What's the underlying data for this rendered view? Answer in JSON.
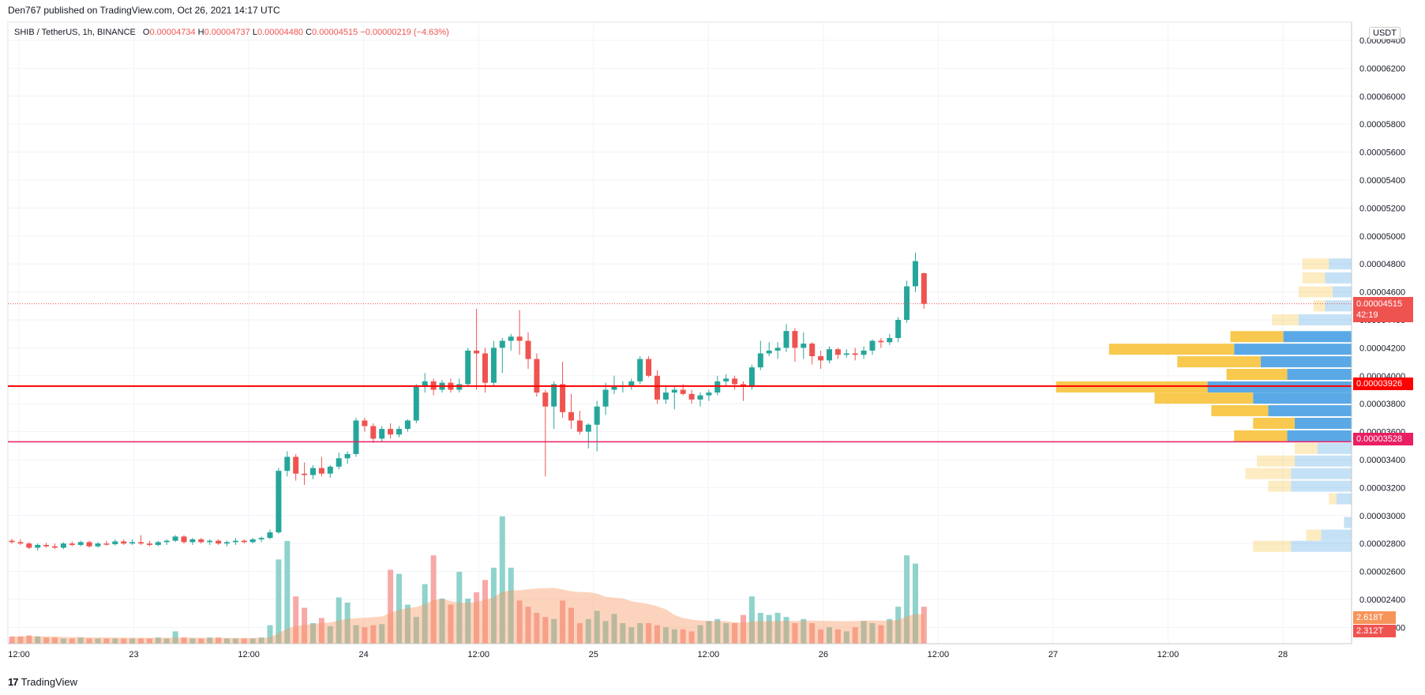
{
  "publisher": "Den767 published on TradingView.com, Oct 26, 2021 14:17 UTC",
  "legend": {
    "symbol": "SHIB / TetherUS, 1h, BINANCE",
    "o_label": "O",
    "o": "0.00004734",
    "h_label": "H",
    "h": "0.00004737",
    "l_label": "L",
    "l": "0.00004480",
    "c_label": "C",
    "c": "0.00004515",
    "change": "−0.00000219 (−4.63%)"
  },
  "axis_unit": "USDT",
  "footer": "TradingView",
  "colors": {
    "up": "#26a69a",
    "down": "#ef5350",
    "vol_up": "#8fd3cc",
    "vol_down": "#f7a9a8",
    "level_red": "#ff0000",
    "level_pink": "#e91e63",
    "profile_up": "#f8c94e",
    "profile_down": "#5aa9e6"
  },
  "labels": {
    "current_price": "0.00004515",
    "countdown": "42:19",
    "level_1": "0.00003926",
    "level_2": "0.00003528",
    "vol_1": "2.618T",
    "vol_2": "2.312T"
  },
  "chart_data": {
    "type": "candlestick",
    "symbol": "SHIB / TetherUS",
    "interval": "1h",
    "exchange": "BINANCE",
    "ylim": [
      2.15e-05,
      6.43e-05
    ],
    "y_ticks": [
      "0.00006400",
      "0.00006200",
      "0.00006000",
      "0.00005800",
      "0.00005600",
      "0.00005400",
      "0.00005200",
      "0.00005000",
      "0.00004800",
      "0.00004600",
      "0.00004400",
      "0.00004200",
      "0.00004000",
      "0.00003800",
      "0.00003600",
      "0.00003400",
      "0.00003200",
      "0.00003000",
      "0.00002800",
      "0.00002600",
      "0.00002400",
      "0.00002200"
    ],
    "x_ticks": [
      "12:00",
      "23",
      "12:00",
      "24",
      "12:00",
      "25",
      "12:00",
      "26",
      "12:00",
      "27",
      "12:00",
      "28"
    ],
    "horizontal_levels": [
      3.926e-05,
      3.528e-05
    ],
    "current_price": 4.515e-05,
    "candles": [
      {
        "o": 2.82e-05,
        "h": 2.835e-05,
        "l": 2.8e-05,
        "c": 2.81e-05
      },
      {
        "o": 2.81e-05,
        "h": 2.83e-05,
        "l": 2.79e-05,
        "c": 2.8e-05
      },
      {
        "o": 2.8e-05,
        "h": 2.81e-05,
        "l": 2.76e-05,
        "c": 2.77e-05
      },
      {
        "o": 2.77e-05,
        "h": 2.8e-05,
        "l": 2.75e-05,
        "c": 2.79e-05
      },
      {
        "o": 2.79e-05,
        "h": 2.805e-05,
        "l": 2.77e-05,
        "c": 2.78e-05
      },
      {
        "o": 2.78e-05,
        "h": 2.8e-05,
        "l": 2.76e-05,
        "c": 2.77e-05
      },
      {
        "o": 2.77e-05,
        "h": 2.81e-05,
        "l": 2.76e-05,
        "c": 2.8e-05
      },
      {
        "o": 2.8e-05,
        "h": 2.815e-05,
        "l": 2.78e-05,
        "c": 2.79e-05
      },
      {
        "o": 2.79e-05,
        "h": 2.82e-05,
        "l": 2.78e-05,
        "c": 2.81e-05
      },
      {
        "o": 2.81e-05,
        "h": 2.82e-05,
        "l": 2.77e-05,
        "c": 2.78e-05
      },
      {
        "o": 2.78e-05,
        "h": 2.81e-05,
        "l": 2.77e-05,
        "c": 2.8e-05
      },
      {
        "o": 2.8e-05,
        "h": 2.82e-05,
        "l": 2.785e-05,
        "c": 2.795e-05
      },
      {
        "o": 2.795e-05,
        "h": 2.83e-05,
        "l": 2.785e-05,
        "c": 2.815e-05
      },
      {
        "o": 2.815e-05,
        "h": 2.83e-05,
        "l": 2.79e-05,
        "c": 2.8e-05
      },
      {
        "o": 2.8e-05,
        "h": 2.83e-05,
        "l": 2.79e-05,
        "c": 2.81e-05
      },
      {
        "o": 2.81e-05,
        "h": 2.86e-05,
        "l": 2.79e-05,
        "c": 2.8e-05
      },
      {
        "o": 2.8e-05,
        "h": 2.82e-05,
        "l": 2.78e-05,
        "c": 2.79e-05
      },
      {
        "o": 2.79e-05,
        "h": 2.82e-05,
        "l": 2.78e-05,
        "c": 2.81e-05
      },
      {
        "o": 2.81e-05,
        "h": 2.83e-05,
        "l": 2.79e-05,
        "c": 2.82e-05
      },
      {
        "o": 2.82e-05,
        "h": 2.86e-05,
        "l": 2.81e-05,
        "c": 2.85e-05
      },
      {
        "o": 2.85e-05,
        "h": 2.86e-05,
        "l": 2.8e-05,
        "c": 2.81e-05
      },
      {
        "o": 2.81e-05,
        "h": 2.84e-05,
        "l": 2.79e-05,
        "c": 2.83e-05
      },
      {
        "o": 2.83e-05,
        "h": 2.84e-05,
        "l": 2.8e-05,
        "c": 2.81e-05
      },
      {
        "o": 2.81e-05,
        "h": 2.83e-05,
        "l": 2.79e-05,
        "c": 2.82e-05
      },
      {
        "o": 2.82e-05,
        "h": 2.83e-05,
        "l": 2.79e-05,
        "c": 2.8e-05
      },
      {
        "o": 2.8e-05,
        "h": 2.82e-05,
        "l": 2.78e-05,
        "c": 2.81e-05
      },
      {
        "o": 2.81e-05,
        "h": 2.84e-05,
        "l": 2.79e-05,
        "c": 2.82e-05
      },
      {
        "o": 2.82e-05,
        "h": 2.83e-05,
        "l": 2.8e-05,
        "c": 2.81e-05
      },
      {
        "o": 2.81e-05,
        "h": 2.84e-05,
        "l": 2.8e-05,
        "c": 2.83e-05
      },
      {
        "o": 2.83e-05,
        "h": 2.85e-05,
        "l": 2.81e-05,
        "c": 2.84e-05
      },
      {
        "o": 2.84e-05,
        "h": 2.9e-05,
        "l": 2.83e-05,
        "c": 2.88e-05
      },
      {
        "o": 2.88e-05,
        "h": 3.34e-05,
        "l": 2.87e-05,
        "c": 3.32e-05
      },
      {
        "o": 3.32e-05,
        "h": 3.46e-05,
        "l": 3.28e-05,
        "c": 3.42e-05
      },
      {
        "o": 3.42e-05,
        "h": 3.44e-05,
        "l": 3.25e-05,
        "c": 3.3e-05
      },
      {
        "o": 3.3e-05,
        "h": 3.38e-05,
        "l": 3.22e-05,
        "c": 3.29e-05
      },
      {
        "o": 3.29e-05,
        "h": 3.36e-05,
        "l": 3.26e-05,
        "c": 3.34e-05
      },
      {
        "o": 3.34e-05,
        "h": 3.42e-05,
        "l": 3.28e-05,
        "c": 3.3e-05
      },
      {
        "o": 3.3e-05,
        "h": 3.36e-05,
        "l": 3.27e-05,
        "c": 3.35e-05
      },
      {
        "o": 3.35e-05,
        "h": 3.45e-05,
        "l": 3.33e-05,
        "c": 3.41e-05
      },
      {
        "o": 3.41e-05,
        "h": 3.46e-05,
        "l": 3.37e-05,
        "c": 3.44e-05
      },
      {
        "o": 3.44e-05,
        "h": 3.7e-05,
        "l": 3.42e-05,
        "c": 3.68e-05
      },
      {
        "o": 3.68e-05,
        "h": 3.7e-05,
        "l": 3.6e-05,
        "c": 3.64e-05
      },
      {
        "o": 3.64e-05,
        "h": 3.66e-05,
        "l": 3.52e-05,
        "c": 3.55e-05
      },
      {
        "o": 3.55e-05,
        "h": 3.64e-05,
        "l": 3.53e-05,
        "c": 3.62e-05
      },
      {
        "o": 3.62e-05,
        "h": 3.66e-05,
        "l": 3.55e-05,
        "c": 3.58e-05
      },
      {
        "o": 3.58e-05,
        "h": 3.64e-05,
        "l": 3.56e-05,
        "c": 3.62e-05
      },
      {
        "o": 3.62e-05,
        "h": 3.69e-05,
        "l": 3.6e-05,
        "c": 3.68e-05
      },
      {
        "o": 3.68e-05,
        "h": 3.94e-05,
        "l": 3.66e-05,
        "c": 3.92e-05
      },
      {
        "o": 3.92e-05,
        "h": 4.02e-05,
        "l": 3.88e-05,
        "c": 3.96e-05
      },
      {
        "o": 3.96e-05,
        "h": 3.98e-05,
        "l": 3.86e-05,
        "c": 3.9e-05
      },
      {
        "o": 3.9e-05,
        "h": 3.97e-05,
        "l": 3.88e-05,
        "c": 3.95e-05
      },
      {
        "o": 3.95e-05,
        "h": 3.98e-05,
        "l": 3.88e-05,
        "c": 3.9e-05
      },
      {
        "o": 3.9e-05,
        "h": 3.98e-05,
        "l": 3.88e-05,
        "c": 3.94e-05
      },
      {
        "o": 3.94e-05,
        "h": 4.2e-05,
        "l": 3.92e-05,
        "c": 4.18e-05
      },
      {
        "o": 4.18e-05,
        "h": 4.48e-05,
        "l": 3.9e-05,
        "c": 4.16e-05
      },
      {
        "o": 4.16e-05,
        "h": 4.2e-05,
        "l": 3.88e-05,
        "c": 3.95e-05
      },
      {
        "o": 3.95e-05,
        "h": 4.25e-05,
        "l": 3.92e-05,
        "c": 4.2e-05
      },
      {
        "o": 4.2e-05,
        "h": 4.27e-05,
        "l": 4.02e-05,
        "c": 4.25e-05
      },
      {
        "o": 4.25e-05,
        "h": 4.3e-05,
        "l": 4.18e-05,
        "c": 4.28e-05
      },
      {
        "o": 4.28e-05,
        "h": 4.47e-05,
        "l": 4.15e-05,
        "c": 4.25e-05
      },
      {
        "o": 4.25e-05,
        "h": 4.31e-05,
        "l": 4.05e-05,
        "c": 4.12e-05
      },
      {
        "o": 4.12e-05,
        "h": 4.16e-05,
        "l": 3.85e-05,
        "c": 3.88e-05
      },
      {
        "o": 3.88e-05,
        "h": 3.9e-05,
        "l": 3.28e-05,
        "c": 3.78e-05
      },
      {
        "o": 3.78e-05,
        "h": 3.96e-05,
        "l": 3.62e-05,
        "c": 3.94e-05
      },
      {
        "o": 3.94e-05,
        "h": 4.1e-05,
        "l": 3.7e-05,
        "c": 3.74e-05
      },
      {
        "o": 3.74e-05,
        "h": 3.87e-05,
        "l": 3.62e-05,
        "c": 3.68e-05
      },
      {
        "o": 3.68e-05,
        "h": 3.75e-05,
        "l": 3.58e-05,
        "c": 3.6e-05
      },
      {
        "o": 3.6e-05,
        "h": 3.66e-05,
        "l": 3.48e-05,
        "c": 3.65e-05
      },
      {
        "o": 3.65e-05,
        "h": 3.82e-05,
        "l": 3.46e-05,
        "c": 3.78e-05
      },
      {
        "o": 3.78e-05,
        "h": 3.95e-05,
        "l": 3.72e-05,
        "c": 3.9e-05
      },
      {
        "o": 3.9e-05,
        "h": 4e-05,
        "l": 3.87e-05,
        "c": 3.92e-05
      },
      {
        "o": 3.92e-05,
        "h": 3.96e-05,
        "l": 3.88e-05,
        "c": 3.93e-05
      },
      {
        "o": 3.93e-05,
        "h": 3.98e-05,
        "l": 3.9e-05,
        "c": 3.96e-05
      },
      {
        "o": 3.96e-05,
        "h": 4.14e-05,
        "l": 3.94e-05,
        "c": 4.12e-05
      },
      {
        "o": 4.12e-05,
        "h": 4.14e-05,
        "l": 3.99e-05,
        "c": 4e-05
      },
      {
        "o": 4e-05,
        "h": 4.04e-05,
        "l": 3.8e-05,
        "c": 3.83e-05
      },
      {
        "o": 3.83e-05,
        "h": 3.92e-05,
        "l": 3.8e-05,
        "c": 3.88e-05
      },
      {
        "o": 3.88e-05,
        "h": 3.93e-05,
        "l": 3.76e-05,
        "c": 3.9e-05
      },
      {
        "o": 3.9e-05,
        "h": 3.94e-05,
        "l": 3.86e-05,
        "c": 3.87e-05
      },
      {
        "o": 3.87e-05,
        "h": 3.9e-05,
        "l": 3.8e-05,
        "c": 3.83e-05
      },
      {
        "o": 3.83e-05,
        "h": 3.88e-05,
        "l": 3.78e-05,
        "c": 3.86e-05
      },
      {
        "o": 3.86e-05,
        "h": 3.9e-05,
        "l": 3.82e-05,
        "c": 3.88e-05
      },
      {
        "o": 3.88e-05,
        "h": 4e-05,
        "l": 3.86e-05,
        "c": 3.96e-05
      },
      {
        "o": 3.96e-05,
        "h": 4.01e-05,
        "l": 3.92e-05,
        "c": 3.98e-05
      },
      {
        "o": 3.98e-05,
        "h": 4e-05,
        "l": 3.9e-05,
        "c": 3.94e-05
      },
      {
        "o": 3.94e-05,
        "h": 3.96e-05,
        "l": 3.82e-05,
        "c": 3.92e-05
      },
      {
        "o": 3.92e-05,
        "h": 4.08e-05,
        "l": 3.9e-05,
        "c": 4.06e-05
      },
      {
        "o": 4.06e-05,
        "h": 4.25e-05,
        "l": 4.04e-05,
        "c": 4.16e-05
      },
      {
        "o": 4.16e-05,
        "h": 4.24e-05,
        "l": 4.14e-05,
        "c": 4.18e-05
      },
      {
        "o": 4.18e-05,
        "h": 4.24e-05,
        "l": 4.12e-05,
        "c": 4.2e-05
      },
      {
        "o": 4.2e-05,
        "h": 4.37e-05,
        "l": 4.17e-05,
        "c": 4.32e-05
      },
      {
        "o": 4.32e-05,
        "h": 4.34e-05,
        "l": 4.1e-05,
        "c": 4.2e-05
      },
      {
        "o": 4.2e-05,
        "h": 4.31e-05,
        "l": 4.12e-05,
        "c": 4.23e-05
      },
      {
        "o": 4.23e-05,
        "h": 4.24e-05,
        "l": 4.08e-05,
        "c": 4.14e-05
      },
      {
        "o": 4.14e-05,
        "h": 4.18e-05,
        "l": 4.05e-05,
        "c": 4.11e-05
      },
      {
        "o": 4.11e-05,
        "h": 4.21e-05,
        "l": 4.09e-05,
        "c": 4.19e-05
      },
      {
        "o": 4.19e-05,
        "h": 4.2e-05,
        "l": 4.12e-05,
        "c": 4.15e-05
      },
      {
        "o": 4.15e-05,
        "h": 4.19e-05,
        "l": 4.13e-05,
        "c": 4.16e-05
      },
      {
        "o": 4.16e-05,
        "h": 4.2e-05,
        "l": 4.11e-05,
        "c": 4.15e-05
      },
      {
        "o": 4.15e-05,
        "h": 4.21e-05,
        "l": 4.12e-05,
        "c": 4.18e-05
      },
      {
        "o": 4.18e-05,
        "h": 4.26e-05,
        "l": 4.15e-05,
        "c": 4.25e-05
      },
      {
        "o": 4.25e-05,
        "h": 4.27e-05,
        "l": 4.2e-05,
        "c": 4.24e-05
      },
      {
        "o": 4.24e-05,
        "h": 4.3e-05,
        "l": 4.22e-05,
        "c": 4.27e-05
      },
      {
        "o": 4.27e-05,
        "h": 4.42e-05,
        "l": 4.24e-05,
        "c": 4.4e-05
      },
      {
        "o": 4.4e-05,
        "h": 4.68e-05,
        "l": 4.38e-05,
        "c": 4.64e-05
      },
      {
        "o": 4.64e-05,
        "h": 4.88e-05,
        "l": 4.6e-05,
        "c": 4.82e-05
      },
      {
        "o": 4.734e-05,
        "h": 4.737e-05,
        "l": 4.48e-05,
        "c": 4.515e-05
      }
    ],
    "volume_relative": [
      0.07,
      0.07,
      0.08,
      0.07,
      0.06,
      0.06,
      0.05,
      0.05,
      0.06,
      0.05,
      0.05,
      0.05,
      0.05,
      0.05,
      0.05,
      0.05,
      0.05,
      0.06,
      0.05,
      0.12,
      0.06,
      0.05,
      0.05,
      0.06,
      0.06,
      0.05,
      0.05,
      0.05,
      0.05,
      0.06,
      0.18,
      0.82,
      1.0,
      0.46,
      0.35,
      0.2,
      0.25,
      0.17,
      0.45,
      0.4,
      0.18,
      0.16,
      0.18,
      0.19,
      0.72,
      0.68,
      0.38,
      0.26,
      0.58,
      0.86,
      0.44,
      0.38,
      0.7,
      0.44,
      0.5,
      0.62,
      0.74,
      1.24,
      0.74,
      0.42,
      0.36,
      0.3,
      0.26,
      0.24,
      0.42,
      0.35,
      0.2,
      0.24,
      0.32,
      0.22,
      0.29,
      0.2,
      0.16,
      0.2,
      0.2,
      0.18,
      0.16,
      0.14,
      0.14,
      0.12,
      0.18,
      0.22,
      0.24,
      0.2,
      0.2,
      0.28,
      0.46,
      0.3,
      0.28,
      0.3,
      0.26,
      0.2,
      0.24,
      0.2,
      0.14,
      0.16,
      0.14,
      0.12,
      0.16,
      0.22,
      0.2,
      0.18,
      0.24,
      0.36,
      0.86,
      0.78,
      0.36
    ],
    "volume_profile": [
      {
        "price": 4.8e-05,
        "up": 0.35,
        "down": 0.3,
        "faded": true
      },
      {
        "price": 4.7e-05,
        "up": 0.3,
        "down": 0.35,
        "faded": true
      },
      {
        "price": 4.6e-05,
        "up": 0.45,
        "down": 0.25,
        "faded": true
      },
      {
        "price": 4.5e-05,
        "up": 0.15,
        "down": 0.35,
        "faded": true
      },
      {
        "price": 4.4e-05,
        "up": 0.35,
        "down": 0.7,
        "faded": true
      },
      {
        "price": 4.28e-05,
        "up": 0.7,
        "down": 0.9,
        "faded": false
      },
      {
        "price": 4.19e-05,
        "up": 1.65,
        "down": 1.55,
        "faded": false
      },
      {
        "price": 4.1e-05,
        "up": 1.1,
        "down": 1.2,
        "faded": false
      },
      {
        "price": 4.01e-05,
        "up": 0.8,
        "down": 0.85,
        "faded": false
      },
      {
        "price": 3.92e-05,
        "up": 2.0,
        "down": 1.9,
        "faded": false
      },
      {
        "price": 3.84e-05,
        "up": 1.3,
        "down": 1.3,
        "faded": false
      },
      {
        "price": 3.75e-05,
        "up": 0.75,
        "down": 1.1,
        "faded": false
      },
      {
        "price": 3.66e-05,
        "up": 0.55,
        "down": 0.75,
        "faded": false
      },
      {
        "price": 3.57e-05,
        "up": 0.7,
        "down": 0.85,
        "faded": false
      },
      {
        "price": 3.48e-05,
        "up": 0.3,
        "down": 0.45,
        "faded": true
      },
      {
        "price": 3.39e-05,
        "up": 0.5,
        "down": 0.75,
        "faded": true
      },
      {
        "price": 3.3e-05,
        "up": 0.6,
        "down": 0.8,
        "faded": true
      },
      {
        "price": 3.21e-05,
        "up": 0.3,
        "down": 0.8,
        "faded": true
      },
      {
        "price": 3.12e-05,
        "up": 0.1,
        "down": 0.2,
        "faded": true
      },
      {
        "price": 2.95e-05,
        "up": 0.0,
        "down": 0.1,
        "faded": true
      },
      {
        "price": 2.86e-05,
        "up": 0.2,
        "down": 0.4,
        "faded": true
      },
      {
        "price": 2.78e-05,
        "up": 0.5,
        "down": 0.8,
        "faded": true
      }
    ]
  }
}
